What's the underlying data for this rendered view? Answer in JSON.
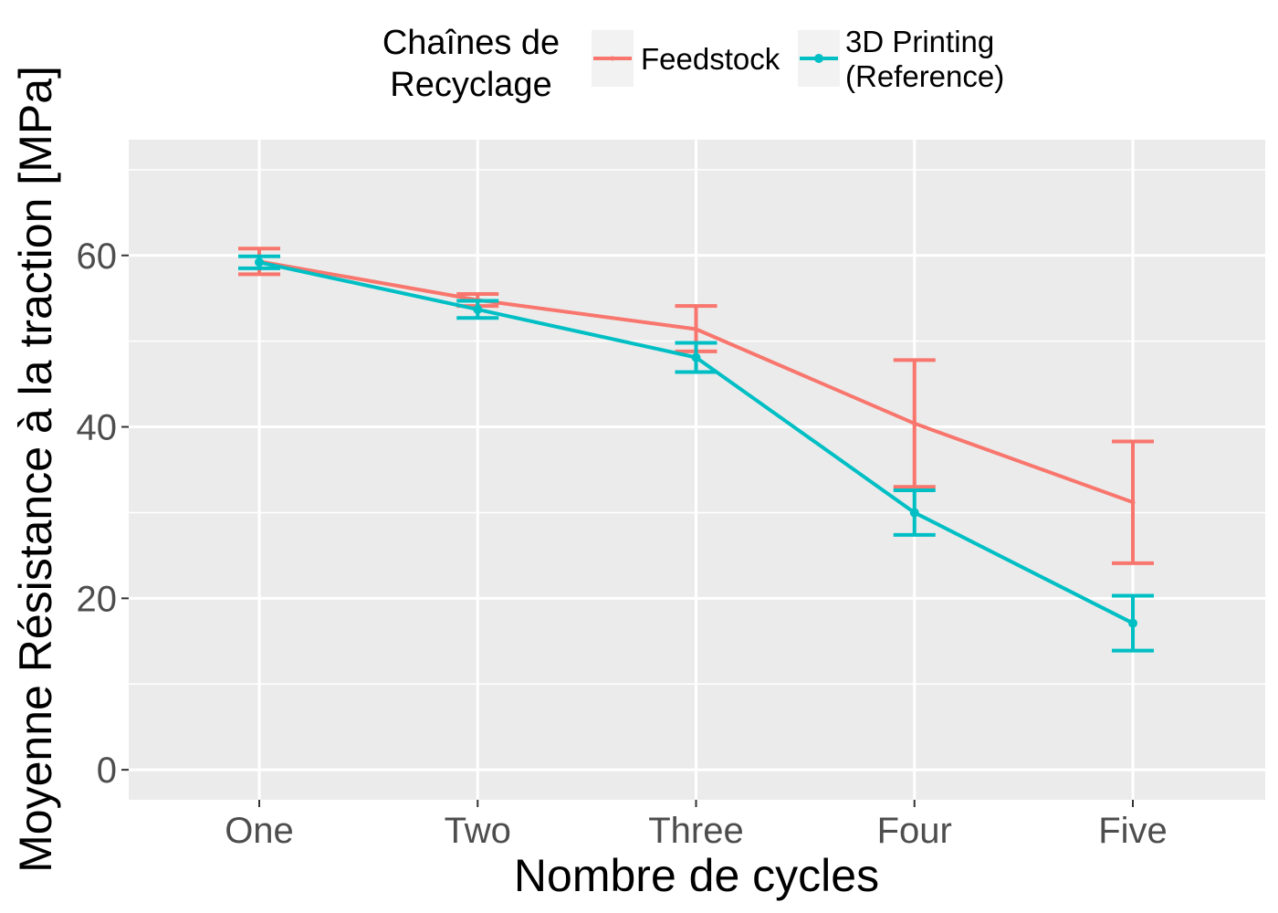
{
  "chart_data": {
    "type": "line",
    "xlabel": "Nombre de cycles",
    "ylabel": "Moyenne Résistance à la traction [MPa]",
    "categories": [
      "One",
      "Two",
      "Three",
      "Four",
      "Five"
    ],
    "ylim": [
      -3.5,
      73.5
    ],
    "yticks": [
      0,
      20,
      40,
      60
    ],
    "grid": true,
    "legend": {
      "title_lines": [
        "Chaînes de",
        "Recyclage"
      ],
      "position": "top"
    },
    "series": [
      {
        "name": "Feedstock",
        "label_lines": [
          "Feedstock"
        ],
        "color": "#F8766D",
        "values": [
          59.3,
          54.8,
          51.4,
          40.4,
          31.2
        ],
        "err_low": [
          57.8,
          54.1,
          48.8,
          33.0,
          24.1
        ],
        "err_high": [
          60.8,
          55.5,
          54.1,
          47.8,
          38.3
        ]
      },
      {
        "name": "3D Printing (Reference)",
        "label_lines": [
          "3D Printing",
          "(Reference)"
        ],
        "color": "#00BFC4",
        "values": [
          59.2,
          53.7,
          48.1,
          30.0,
          17.1
        ],
        "err_low": [
          58.5,
          52.7,
          46.4,
          27.4,
          13.9
        ],
        "err_high": [
          59.9,
          54.7,
          49.8,
          32.6,
          20.3
        ]
      }
    ]
  }
}
